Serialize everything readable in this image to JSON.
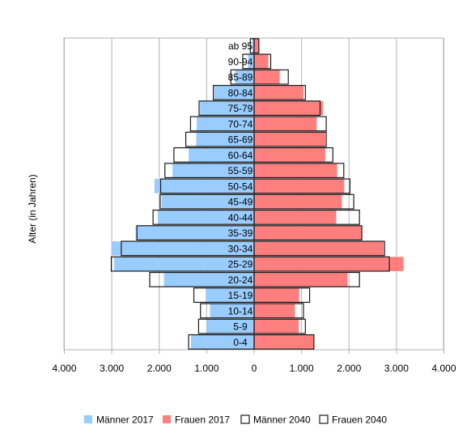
{
  "chart_data": {
    "type": "bar",
    "orientation": "horizontal",
    "layout": "population-pyramid",
    "title": "",
    "ylabel": "Alter (in Jahren)",
    "xlabel": "",
    "xlim": [
      -4000,
      4000
    ],
    "x_ticks": [
      {
        "value": -4000,
        "label": "4.000"
      },
      {
        "value": -3000,
        "label": "3.000"
      },
      {
        "value": -2000,
        "label": "2.000"
      },
      {
        "value": -1000,
        "label": "1.000"
      },
      {
        "value": 0,
        "label": "0"
      },
      {
        "value": 1000,
        "label": "1.000"
      },
      {
        "value": 2000,
        "label": "2.000"
      },
      {
        "value": 3000,
        "label": "3.000"
      },
      {
        "value": 4000,
        "label": "4.000"
      }
    ],
    "grid": true,
    "legend_position": "bottom",
    "categories": [
      "0-4",
      "5-9",
      "10-14",
      "15-19",
      "20-24",
      "25-29",
      "30-34",
      "35-39",
      "40-44",
      "45-49",
      "50-54",
      "55-59",
      "60-64",
      "65-69",
      "70-74",
      "75-79",
      "80-84",
      "85-89",
      "90-94",
      "ab 95"
    ],
    "series": [
      {
        "name": "Männer 2017",
        "side": "left",
        "style": "filled",
        "color": "#99ccff",
        "values": [
          1330,
          1000,
          930,
          1020,
          1900,
          2950,
          3000,
          2500,
          2030,
          1950,
          2100,
          1720,
          1380,
          1220,
          1210,
          1140,
          840,
          400,
          130,
          40
        ]
      },
      {
        "name": "Frauen 2017",
        "side": "right",
        "style": "filled",
        "color": "#ff7f7f",
        "values": [
          1260,
          940,
          860,
          950,
          1970,
          3150,
          2730,
          2270,
          1730,
          1850,
          1900,
          1750,
          1500,
          1500,
          1320,
          1450,
          1040,
          540,
          300,
          100
        ]
      },
      {
        "name": "Männer 2040",
        "side": "left",
        "style": "outline",
        "color": "#1a1a1a",
        "values": [
          1380,
          1170,
          1130,
          1270,
          2200,
          3010,
          2800,
          2470,
          2130,
          1980,
          1970,
          1880,
          1690,
          1440,
          1340,
          1160,
          860,
          490,
          240,
          80
        ]
      },
      {
        "name": "Frauen 2040",
        "side": "right",
        "style": "outline",
        "color": "#1a1a1a",
        "values": [
          1260,
          1080,
          1040,
          1170,
          2220,
          2850,
          2750,
          2270,
          2220,
          2100,
          2020,
          1890,
          1660,
          1520,
          1520,
          1390,
          1080,
          720,
          350,
          100
        ]
      }
    ]
  }
}
